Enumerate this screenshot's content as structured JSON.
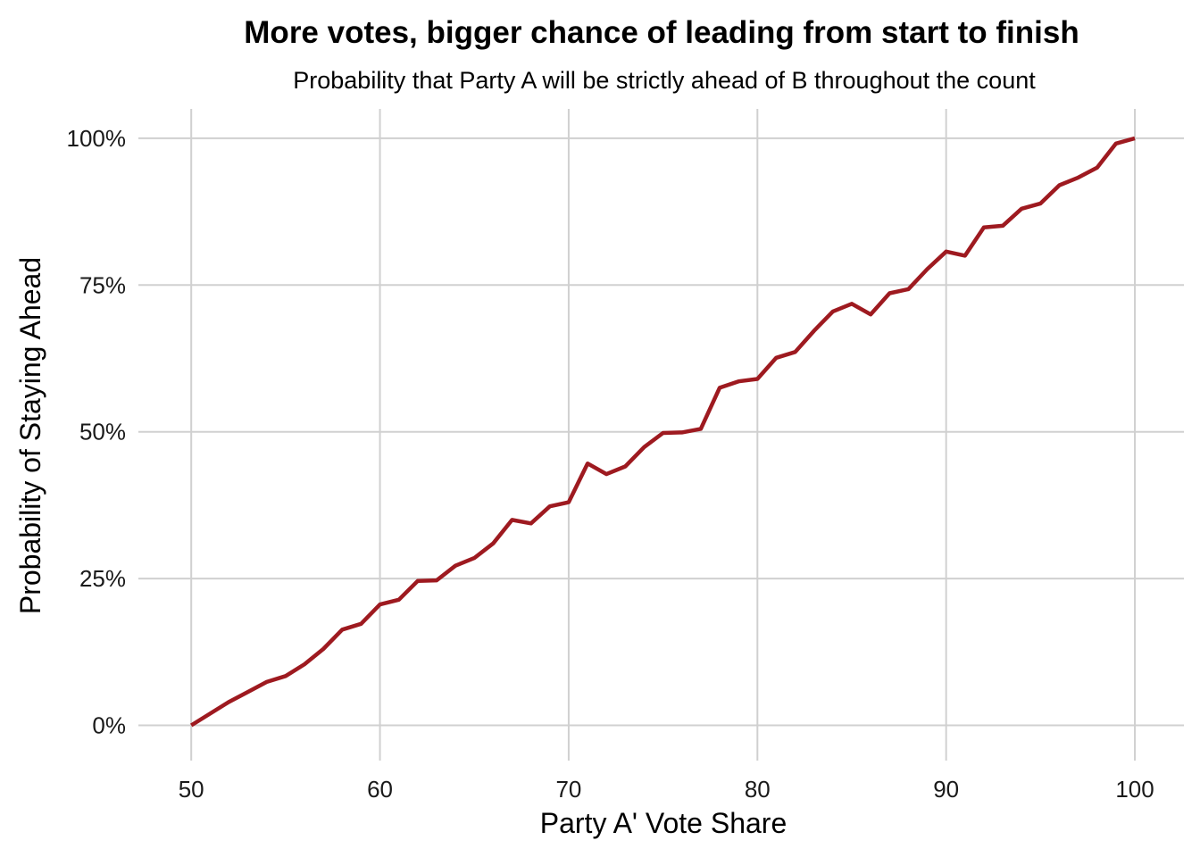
{
  "chart_data": {
    "type": "line",
    "title": "More votes, bigger chance of leading from start to finish",
    "subtitle": "Probability that Party A will be strictly ahead of B throughout the count",
    "xlabel": "Party A' Vote Share",
    "ylabel": "Probability of Staying Ahead",
    "xlim": [
      47.2,
      102.6
    ],
    "ylim": [
      -0.06,
      1.05
    ],
    "x_ticks": [
      50,
      60,
      70,
      80,
      90,
      100
    ],
    "x_tick_labels": [
      "50",
      "60",
      "70",
      "80",
      "90",
      "100"
    ],
    "y_ticks": [
      0,
      0.25,
      0.5,
      0.75,
      1.0
    ],
    "y_tick_labels": [
      "0%",
      "25%",
      "50%",
      "75%",
      "100%"
    ],
    "grid": true,
    "line_color": "#9e1a20",
    "series": [
      {
        "x": [
          50,
          51,
          52,
          53,
          54,
          55,
          56,
          57,
          58,
          59,
          60,
          61,
          62,
          63,
          64,
          65,
          66,
          67,
          68,
          69,
          70,
          71,
          72,
          73,
          74,
          75,
          76,
          77,
          78,
          79,
          80,
          81,
          82,
          83,
          84,
          85,
          86,
          87,
          88,
          89,
          90,
          91,
          92,
          93,
          94,
          95,
          96,
          97,
          98,
          99,
          100
        ],
        "values": [
          0.0,
          0.02,
          0.04,
          0.057,
          0.074,
          0.084,
          0.104,
          0.13,
          0.163,
          0.173,
          0.206,
          0.214,
          0.246,
          0.247,
          0.272,
          0.285,
          0.31,
          0.35,
          0.344,
          0.373,
          0.38,
          0.446,
          0.428,
          0.441,
          0.474,
          0.498,
          0.499,
          0.505,
          0.575,
          0.586,
          0.59,
          0.626,
          0.636,
          0.672,
          0.705,
          0.718,
          0.7,
          0.736,
          0.743,
          0.777,
          0.807,
          0.8,
          0.848,
          0.851,
          0.88,
          0.889,
          0.92,
          0.933,
          0.95,
          0.991,
          1.0
        ]
      }
    ]
  }
}
